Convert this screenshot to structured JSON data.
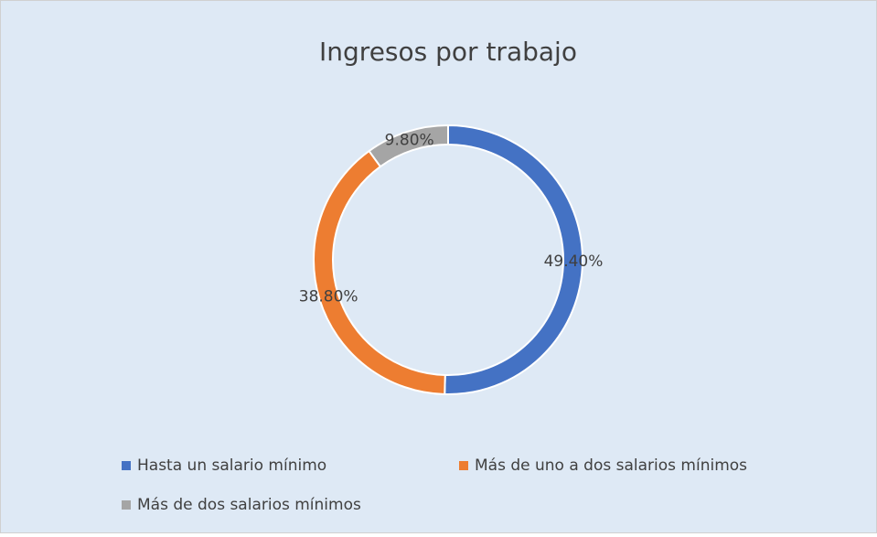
{
  "chart_data": {
    "type": "donut",
    "title": "Ingresos por trabajo",
    "categories": [
      "Hasta un salario mínimo",
      "Más de uno a dos salarios mínimos",
      "Más de dos salarios mínimos"
    ],
    "values": [
      49.4,
      38.8,
      9.8
    ],
    "value_labels": [
      "49.40%",
      "38.80%",
      "9.80%"
    ],
    "colors": [
      "#4472c4",
      "#ed7d31",
      "#a5a5a5"
    ],
    "legend": "bottom"
  }
}
